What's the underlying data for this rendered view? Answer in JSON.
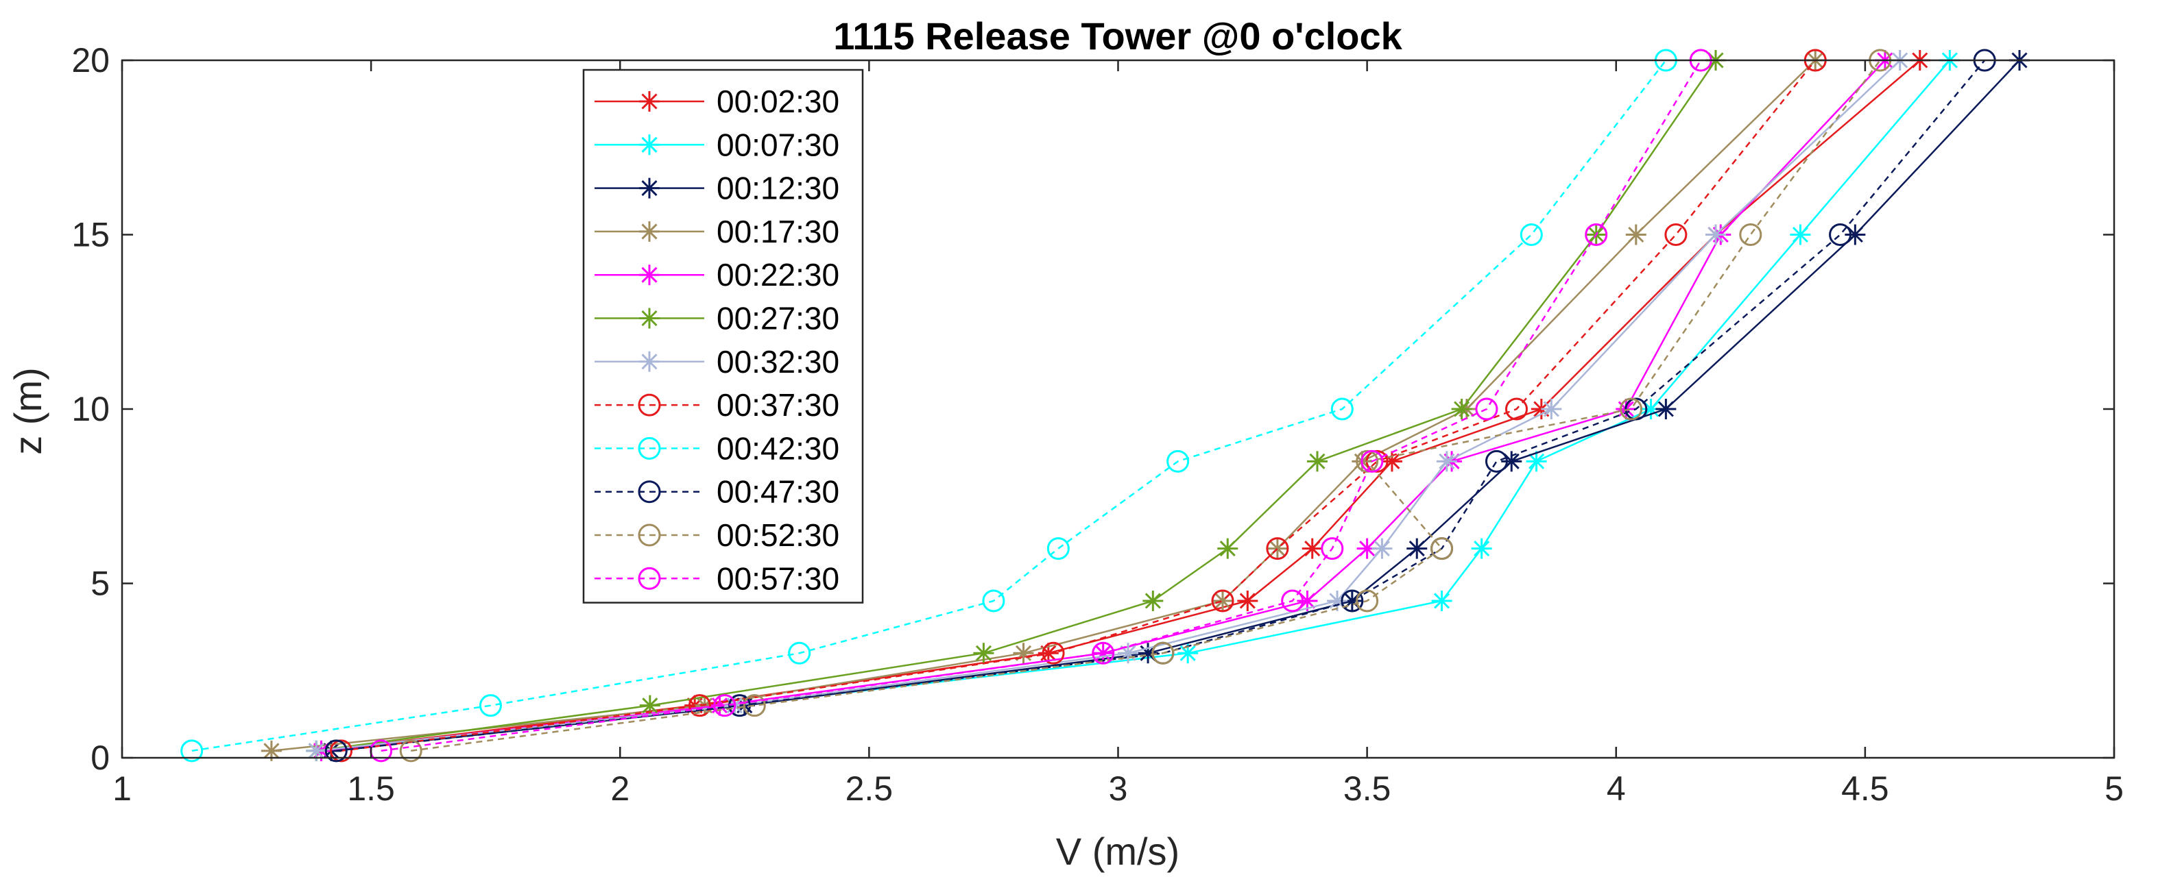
{
  "chart_data": {
    "type": "line",
    "title": "1115 Release Tower @0 o'clock",
    "xlabel": "V (m/s)",
    "ylabel": "z (m)",
    "xlim": [
      1,
      5
    ],
    "ylim": [
      0,
      20
    ],
    "xticks": [
      1,
      1.5,
      2,
      2.5,
      3,
      3.5,
      4,
      4.5,
      5
    ],
    "xtick_labels": [
      "1",
      "1.5",
      "2",
      "2.5",
      "3",
      "3.5",
      "4",
      "4.5",
      "5"
    ],
    "yticks": [
      0,
      5,
      10,
      15,
      20
    ],
    "ytick_labels": [
      "0",
      "5",
      "10",
      "15",
      "20"
    ],
    "grid": false,
    "legend_position": "upper-left-inside",
    "z": [
      0.2,
      1.5,
      3,
      4.5,
      6,
      8.5,
      10,
      15,
      20
    ],
    "series": [
      {
        "name": "00:02:30",
        "color": "#e41a1c",
        "marker": "asterisk",
        "linestyle": "solid",
        "x": [
          1.4,
          2.15,
          2.86,
          3.26,
          3.39,
          3.55,
          3.85,
          4.2,
          4.61
        ]
      },
      {
        "name": "00:07:30",
        "color": "#00ffff",
        "marker": "asterisk",
        "linestyle": "solid",
        "x": [
          1.39,
          2.23,
          3.14,
          3.65,
          3.73,
          3.84,
          4.07,
          4.37,
          4.67
        ]
      },
      {
        "name": "00:12:30",
        "color": "#0b1a5a",
        "marker": "asterisk",
        "linestyle": "solid",
        "x": [
          1.42,
          2.25,
          3.06,
          3.47,
          3.6,
          3.79,
          4.1,
          4.48,
          4.81
        ]
      },
      {
        "name": "00:17:30",
        "color": "#a08c5c",
        "marker": "asterisk",
        "linestyle": "solid",
        "x": [
          1.3,
          2.17,
          2.81,
          3.21,
          3.32,
          3.49,
          3.7,
          4.04,
          4.4
        ]
      },
      {
        "name": "00:22:30",
        "color": "#ff00ff",
        "marker": "asterisk",
        "linestyle": "solid",
        "x": [
          1.4,
          2.2,
          2.97,
          3.38,
          3.5,
          3.67,
          4.02,
          4.21,
          4.54
        ]
      },
      {
        "name": "00:27:30",
        "color": "#6aa121",
        "marker": "asterisk",
        "linestyle": "solid",
        "x": [
          1.39,
          2.06,
          2.73,
          3.07,
          3.22,
          3.4,
          3.69,
          3.96,
          4.2
        ]
      },
      {
        "name": "00:32:30",
        "color": "#a9b6d8",
        "marker": "asterisk",
        "linestyle": "solid",
        "x": [
          1.39,
          2.23,
          3.02,
          3.44,
          3.53,
          3.66,
          3.87,
          4.2,
          4.57
        ]
      },
      {
        "name": "00:37:30",
        "color": "#e41a1c",
        "marker": "circle",
        "linestyle": "dashed",
        "x": [
          1.44,
          2.16,
          2.87,
          3.21,
          3.32,
          3.52,
          3.8,
          4.12,
          4.4
        ]
      },
      {
        "name": "00:42:30",
        "color": "#00ffff",
        "marker": "circle",
        "linestyle": "dashed",
        "x": [
          1.14,
          1.74,
          2.36,
          2.75,
          2.88,
          3.12,
          3.45,
          3.83,
          4.1
        ]
      },
      {
        "name": "00:47:30",
        "color": "#0b1a5a",
        "marker": "circle",
        "linestyle": "dashed",
        "x": [
          1.43,
          2.24,
          3.09,
          3.47,
          3.65,
          3.76,
          4.04,
          4.45,
          4.74
        ]
      },
      {
        "name": "00:52:30",
        "color": "#a08c5c",
        "marker": "circle",
        "linestyle": "dashed",
        "x": [
          1.58,
          2.27,
          3.09,
          3.5,
          3.65,
          3.5,
          4.03,
          4.27,
          4.53
        ]
      },
      {
        "name": "00:57:30",
        "color": "#ff00ff",
        "marker": "circle",
        "linestyle": "dashed",
        "x": [
          1.52,
          2.21,
          2.97,
          3.35,
          3.43,
          3.51,
          3.74,
          3.96,
          4.17
        ]
      }
    ]
  }
}
